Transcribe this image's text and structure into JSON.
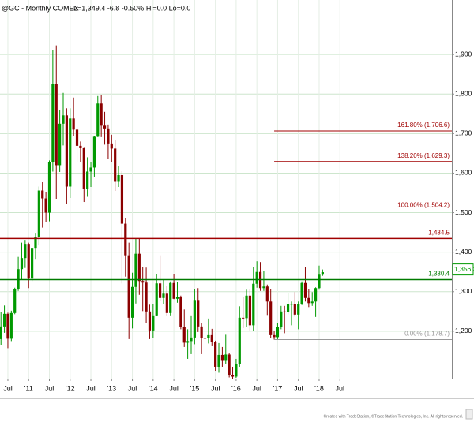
{
  "chart_data": {
    "type": "candlestick",
    "title": "@GC - Monthly COMEX",
    "subtitle": "L=1,349.4 -6.8 -0.50% Hi=0.0 Lo=0.0",
    "footer": "Created with TradeStation, ©TradeStation Technologies, Inc. All rights reserved.",
    "x": [
      "2010-05",
      "2010-06",
      "2010-07",
      "2010-08",
      "2010-09",
      "2010-10",
      "2010-11",
      "2010-12",
      "2011-01",
      "2011-02",
      "2011-03",
      "2011-04",
      "2011-05",
      "2011-06",
      "2011-07",
      "2011-08",
      "2011-09",
      "2011-10",
      "2011-11",
      "2011-12",
      "2012-01",
      "2012-02",
      "2012-03",
      "2012-04",
      "2012-05",
      "2012-06",
      "2012-07",
      "2012-08",
      "2012-09",
      "2012-10",
      "2012-11",
      "2012-12",
      "2013-01",
      "2013-02",
      "2013-03",
      "2013-04",
      "2013-05",
      "2013-06",
      "2013-07",
      "2013-08",
      "2013-09",
      "2013-10",
      "2013-11",
      "2013-12",
      "2014-01",
      "2014-02",
      "2014-03",
      "2014-04",
      "2014-05",
      "2014-06",
      "2014-07",
      "2014-08",
      "2014-09",
      "2014-10",
      "2014-11",
      "2014-12",
      "2015-01",
      "2015-02",
      "2015-03",
      "2015-04",
      "2015-05",
      "2015-06",
      "2015-07",
      "2015-08",
      "2015-09",
      "2015-10",
      "2015-11",
      "2015-12",
      "2016-01",
      "2016-02",
      "2016-03",
      "2016-04",
      "2016-05",
      "2016-06",
      "2016-07",
      "2016-08",
      "2016-09",
      "2016-10",
      "2016-11",
      "2016-12",
      "2017-01",
      "2017-02",
      "2017-03",
      "2017-04",
      "2017-05",
      "2017-06",
      "2017-07",
      "2017-08",
      "2017-09",
      "2017-10",
      "2017-11",
      "2017-12",
      "2018-01",
      "2018-02"
    ],
    "open": [
      1180,
      1212,
      1244,
      1181,
      1246,
      1307,
      1357,
      1385,
      1421,
      1333,
      1409,
      1439,
      1556,
      1536,
      1500,
      1628,
      1825,
      1620,
      1725,
      1746,
      1566,
      1738,
      1710,
      1669,
      1664,
      1560,
      1604,
      1614,
      1692,
      1776,
      1720,
      1713,
      1675,
      1662,
      1578,
      1595,
      1472,
      1392,
      1234,
      1312,
      1396,
      1327,
      1323,
      1250,
      1202,
      1240,
      1321,
      1284,
      1295,
      1246,
      1322,
      1282,
      1287,
      1211,
      1171,
      1175,
      1184,
      1279,
      1212,
      1183,
      1182,
      1190,
      1172,
      1110,
      1140,
      1125,
      1141,
      1090,
      1085,
      1116,
      1234,
      1233,
      1290,
      1215,
      1320,
      1350,
      1309,
      1313,
      1275,
      1190,
      1185,
      1211,
      1250,
      1249,
      1268,
      1269,
      1242,
      1269,
      1322,
      1284,
      1271,
      1275,
      1309,
      1343
    ],
    "high": [
      1249,
      1265,
      1247,
      1252,
      1310,
      1388,
      1424,
      1431,
      1424,
      1411,
      1447,
      1566,
      1577,
      1553,
      1632,
      1911,
      1923,
      1760,
      1803,
      1764,
      1764,
      1791,
      1718,
      1680,
      1666,
      1640,
      1627,
      1693,
      1795,
      1798,
      1755,
      1723,
      1697,
      1684,
      1617,
      1605,
      1487,
      1424,
      1348,
      1434,
      1434,
      1362,
      1361,
      1267,
      1268,
      1345,
      1392,
      1331,
      1315,
      1326,
      1345,
      1324,
      1290,
      1255,
      1205,
      1240,
      1307,
      1309,
      1221,
      1225,
      1232,
      1206,
      1176,
      1170,
      1160,
      1191,
      1145,
      1110,
      1130,
      1263,
      1287,
      1305,
      1307,
      1362,
      1377,
      1375,
      1352,
      1318,
      1306,
      1200,
      1220,
      1264,
      1264,
      1296,
      1275,
      1299,
      1275,
      1326,
      1362,
      1306,
      1299,
      1311,
      1366,
      1356.2
    ],
    "low": [
      1165,
      1196,
      1157,
      1175,
      1243,
      1302,
      1330,
      1360,
      1309,
      1327,
      1383,
      1417,
      1462,
      1477,
      1478,
      1604,
      1535,
      1603,
      1670,
      1523,
      1537,
      1694,
      1627,
      1627,
      1527,
      1540,
      1565,
      1591,
      1691,
      1691,
      1672,
      1636,
      1627,
      1555,
      1565,
      1321,
      1338,
      1180,
      1207,
      1270,
      1292,
      1251,
      1221,
      1180,
      1182,
      1238,
      1277,
      1268,
      1240,
      1240,
      1281,
      1272,
      1205,
      1160,
      1130,
      1142,
      1167,
      1198,
      1142,
      1175,
      1169,
      1162,
      1100,
      1095,
      1110,
      1118,
      1083,
      1080,
      1082,
      1110,
      1208,
      1211,
      1200,
      1200,
      1310,
      1302,
      1302,
      1241,
      1182,
      1178.7,
      1180,
      1205,
      1195,
      1243,
      1215,
      1237,
      1205,
      1266,
      1275,
      1261,
      1264,
      1236,
      1305,
      1340
    ],
    "close": [
      1212,
      1244,
      1181,
      1246,
      1307,
      1357,
      1385,
      1421,
      1333,
      1409,
      1439,
      1556,
      1536,
      1500,
      1628,
      1825,
      1620,
      1725,
      1746,
      1566,
      1738,
      1710,
      1669,
      1664,
      1560,
      1604,
      1614,
      1692,
      1776,
      1720,
      1713,
      1675,
      1662,
      1578,
      1595,
      1472,
      1392,
      1234,
      1312,
      1396,
      1327,
      1323,
      1250,
      1202,
      1240,
      1321,
      1284,
      1295,
      1246,
      1322,
      1282,
      1287,
      1211,
      1171,
      1175,
      1184,
      1279,
      1212,
      1183,
      1182,
      1190,
      1172,
      1110,
      1140,
      1125,
      1141,
      1090,
      1085,
      1116,
      1234,
      1233,
      1290,
      1215,
      1320,
      1350,
      1309,
      1313,
      1275,
      1190,
      1185,
      1211,
      1250,
      1249,
      1268,
      1269,
      1242,
      1269,
      1322,
      1284,
      1271,
      1275,
      1309,
      1343,
      1349.4
    ],
    "up_color": "#009900",
    "down_color": "#8b0000",
    "ylim": [
      1080,
      2038
    ],
    "yticks": [
      {
        "value": 1200,
        "label": "1,200"
      },
      {
        "value": 1300,
        "label": "1,300"
      },
      {
        "value": 1400,
        "label": "1,400"
      },
      {
        "value": 1500,
        "label": "1,500"
      },
      {
        "value": 1600,
        "label": "1,600"
      },
      {
        "value": 1700,
        "label": "1,700"
      },
      {
        "value": 1800,
        "label": "1,800"
      },
      {
        "value": 1900,
        "label": "1,900"
      }
    ],
    "xticks": [
      {
        "value": "2010-07",
        "label": "Jul"
      },
      {
        "value": "2011-01",
        "label": "'11"
      },
      {
        "value": "2011-07",
        "label": "Jul"
      },
      {
        "value": "2012-01",
        "label": "'12"
      },
      {
        "value": "2012-07",
        "label": "Jul"
      },
      {
        "value": "2013-01",
        "label": "'13"
      },
      {
        "value": "2013-07",
        "label": "Jul"
      },
      {
        "value": "2014-01",
        "label": "'14"
      },
      {
        "value": "2014-07",
        "label": "Jul"
      },
      {
        "value": "2015-01",
        "label": "'15"
      },
      {
        "value": "2015-07",
        "label": "Jul"
      },
      {
        "value": "2016-01",
        "label": "'16"
      },
      {
        "value": "2016-07",
        "label": "Jul"
      },
      {
        "value": "2017-01",
        "label": "'17"
      },
      {
        "value": "2017-07",
        "label": "Jul"
      },
      {
        "value": "2018-01",
        "label": "'18"
      },
      {
        "value": "2018-07",
        "label": "Jul"
      }
    ],
    "grid": true,
    "levels": [
      {
        "value": 1434.5,
        "label": "1,434.5",
        "color": "#a00000"
      },
      {
        "value": 1330.4,
        "label": "1,330.4",
        "color": "#007a00"
      }
    ],
    "fib_start": "2016-12",
    "fib_levels": [
      {
        "value": 1706.6,
        "label": "161.80% (1,706.6)",
        "color": "#a00000"
      },
      {
        "value": 1629.3,
        "label": "138.20% (1,629.3)",
        "color": "#a00000"
      },
      {
        "value": 1504.2,
        "label": "100.00% (1,504.2)",
        "color": "#a00000"
      },
      {
        "value": 1178.7,
        "label": "0.00% (1,178.7)",
        "color": "#999999"
      }
    ],
    "last_price": {
      "value": 1356.2,
      "label": "1,356.2",
      "color": "#009900"
    }
  }
}
